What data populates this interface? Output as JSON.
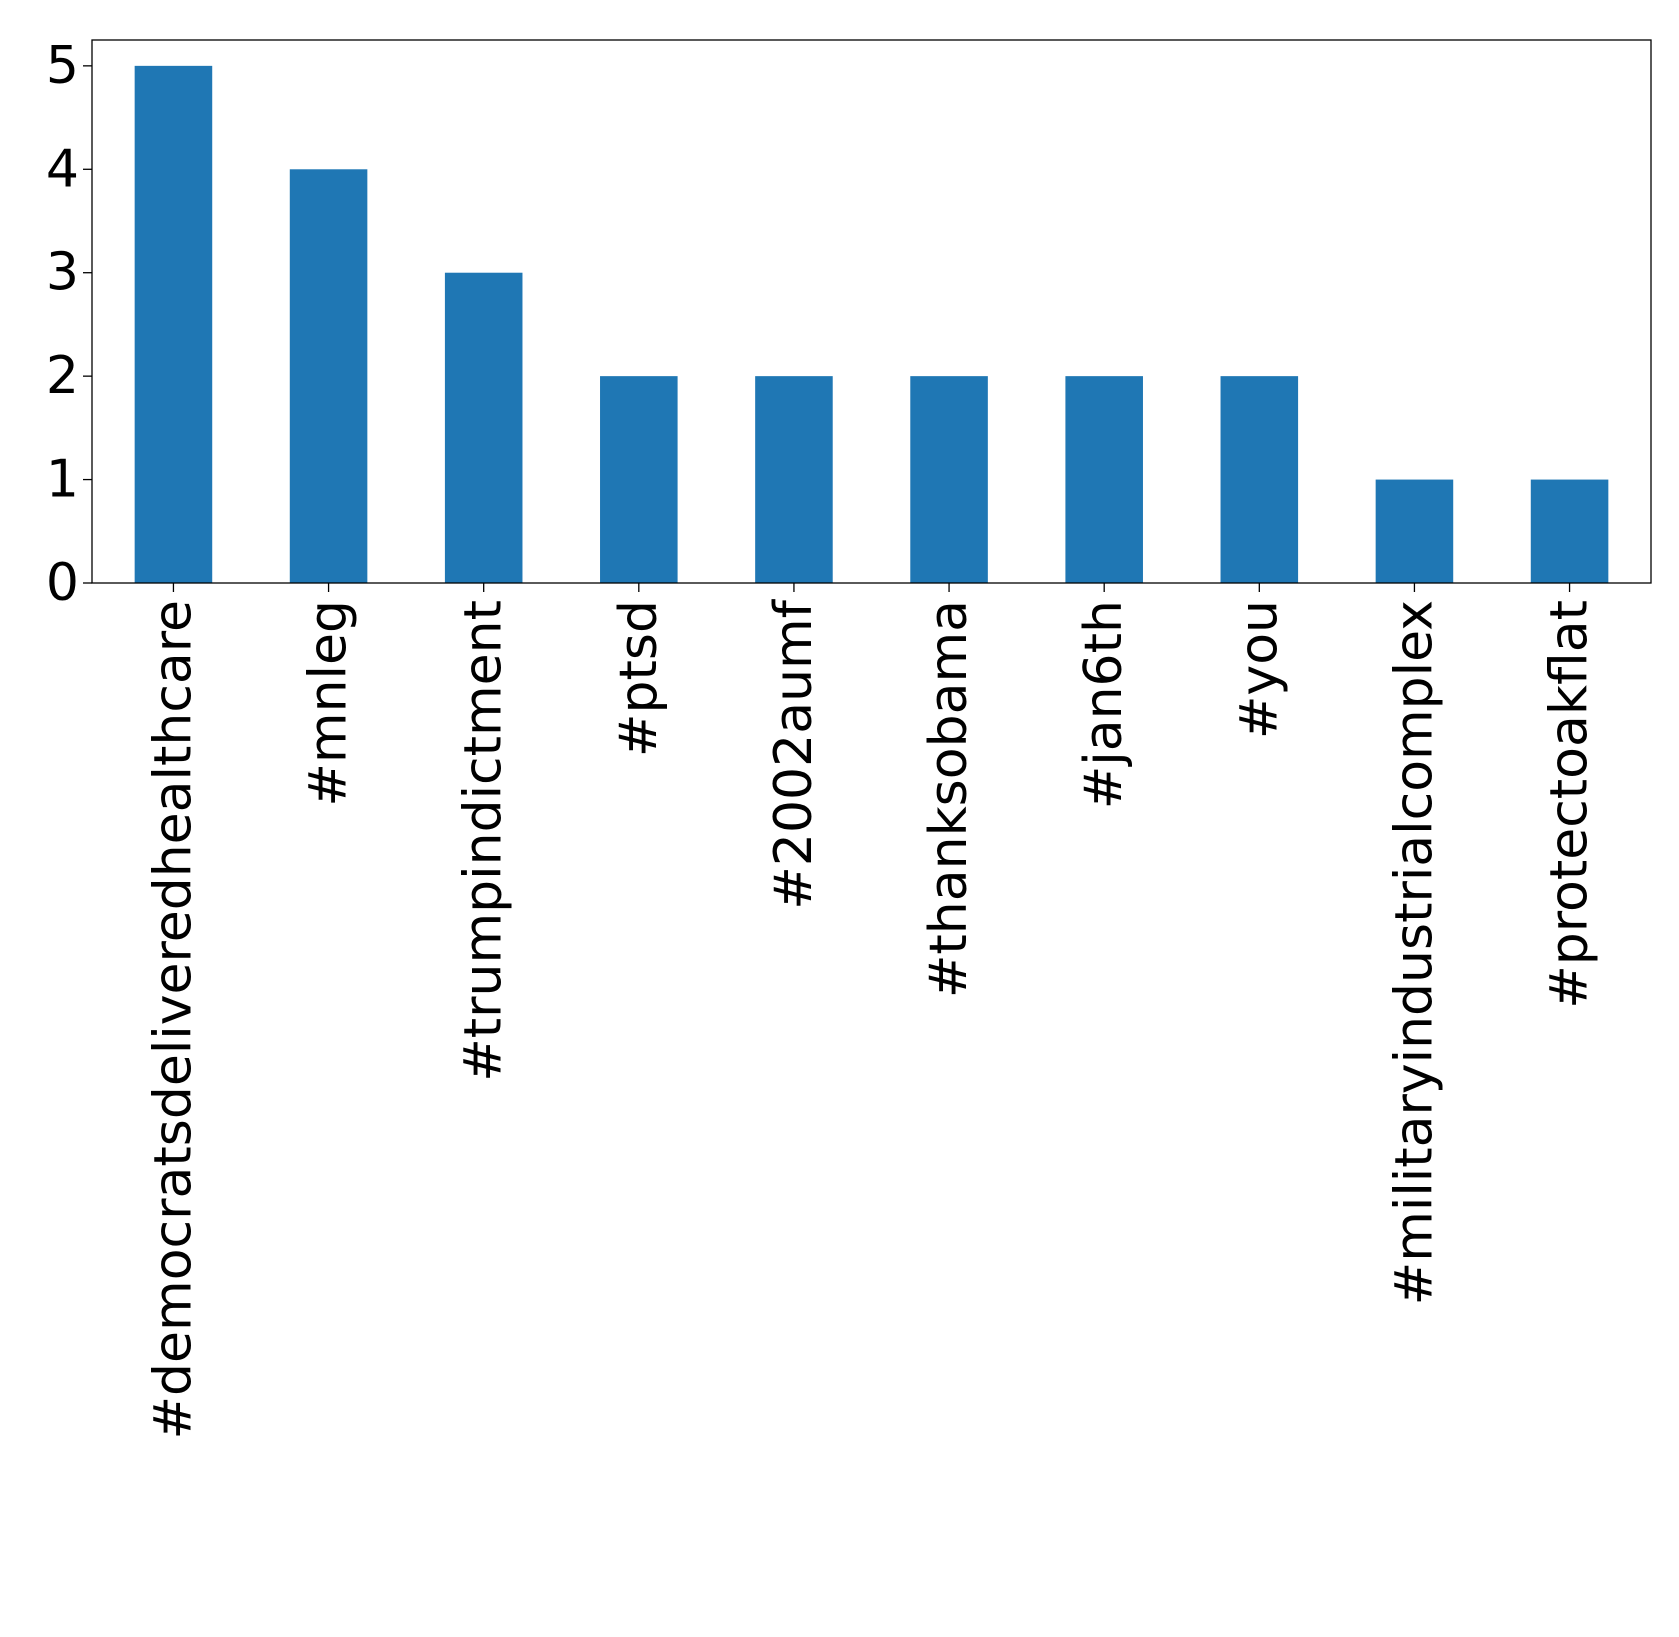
{
  "chart_data": {
    "type": "bar",
    "title": "",
    "xlabel": "",
    "ylabel": "",
    "categories": [
      "#democratsdeliveredhealthcare",
      "#mnleg",
      "#trumpindictment",
      "#ptsd",
      "#2002aumf",
      "#thanksobama",
      "#jan6th",
      "#you",
      "#militaryindustrialcomplex",
      "#protectoakflat"
    ],
    "values": [
      5,
      4,
      3,
      2,
      2,
      2,
      2,
      2,
      1,
      1
    ],
    "ylim": [
      0,
      5.25
    ],
    "yticks": [
      0,
      1,
      2,
      3,
      4,
      5
    ],
    "grid": false,
    "legend": "none",
    "bar_color": "#1f77b4"
  }
}
